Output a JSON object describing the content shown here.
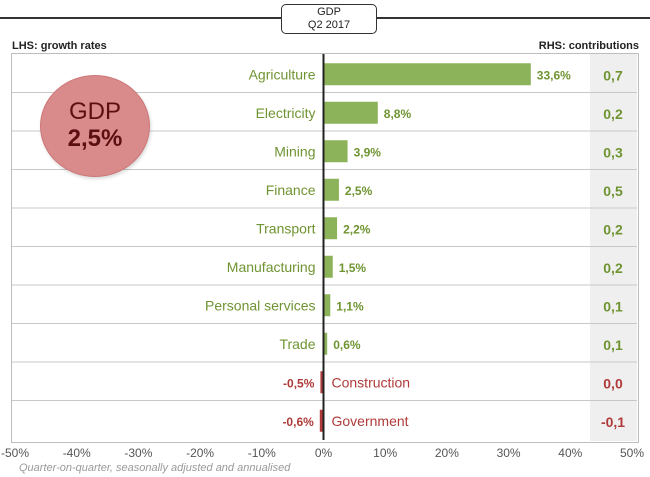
{
  "header": {
    "title_line1": "GDP",
    "title_line2": "Q2 2017"
  },
  "lhs_label": "LHS: growth rates",
  "rhs_label": "RHS: contributions",
  "gdp_badge": {
    "label": "GDP",
    "value": "2,5%"
  },
  "footnote": "Quarter-on-quarter, seasonally adjusted and annualised",
  "colors": {
    "positive": "#8db35a",
    "negative": "#b03a3a",
    "positive_text": "#6f9432",
    "negative_text": "#b03a3a",
    "badge": "#d98a8a"
  },
  "chart_data": {
    "type": "bar",
    "orientation": "horizontal",
    "xlim": [
      -50,
      50
    ],
    "x_ticks": [
      "-50%",
      "-40%",
      "-30%",
      "-20%",
      "-10%",
      "0%",
      "10%",
      "20%",
      "30%",
      "40%",
      "50%"
    ],
    "categories": [
      "Agriculture",
      "Electricity",
      "Mining",
      "Finance",
      "Transport",
      "Manufacturing",
      "Personal services",
      "Trade",
      "Construction",
      "Government"
    ],
    "values": [
      33.6,
      8.8,
      3.9,
      2.5,
      2.2,
      1.5,
      1.1,
      0.6,
      -0.5,
      -0.6
    ],
    "value_labels": [
      "33,6%",
      "8,8%",
      "3,9%",
      "2,5%",
      "2,2%",
      "1,5%",
      "1,1%",
      "0,6%",
      "-0,5%",
      "-0,6%"
    ],
    "contributions": [
      "0,7",
      "0,2",
      "0,3",
      "0,5",
      "0,2",
      "0,2",
      "0,1",
      "0,1",
      "0,0",
      "-0,1"
    ],
    "grid": "horizontal separators"
  }
}
